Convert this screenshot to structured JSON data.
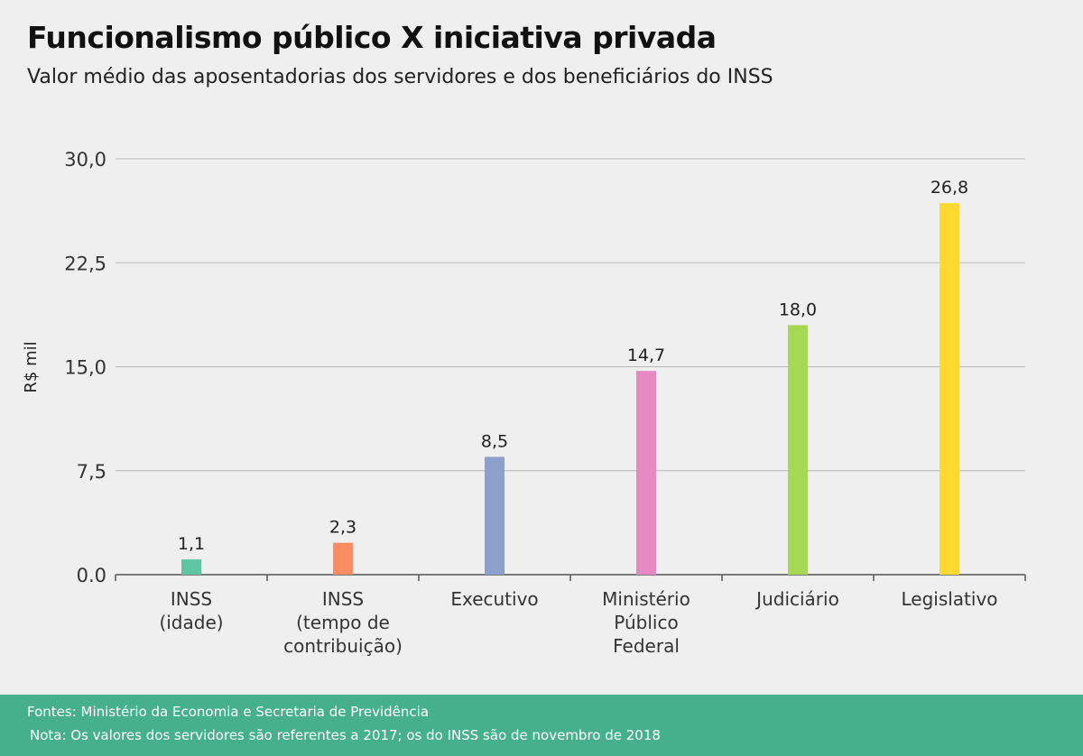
{
  "title": "Funcionalismo público X iniciativa privada",
  "subtitle": "Valor médio das aposentadorias dos servidores e dos beneficiários do INSS",
  "footer": {
    "sources": "Fontes: Ministério da Economia e Secretaria de Previdência",
    "note": "Nota: Os valores dos servidores são referentes a 2017; os do INSS são de novembro de 2018"
  },
  "chart_data": {
    "type": "bar",
    "ylabel": "R$ mil",
    "ylim": [
      0,
      30
    ],
    "yticks": [
      0,
      7.5,
      15,
      22.5,
      30
    ],
    "ytick_labels": [
      "0.0",
      "7,5",
      "15,0",
      "22,5",
      "30,0"
    ],
    "grid": true,
    "categories": [
      [
        "INSS",
        "(idade)"
      ],
      [
        "INSS",
        "(tempo de",
        "contribuição)"
      ],
      [
        "Executivo"
      ],
      [
        "Ministério",
        "Público",
        "Federal"
      ],
      [
        "Judiciário"
      ],
      [
        "Legislativo"
      ]
    ],
    "values": [
      1.1,
      2.3,
      8.5,
      14.7,
      18.0,
      26.8
    ],
    "value_labels": [
      "1,1",
      "2,3",
      "8,5",
      "14,7",
      "18,0",
      "26,8"
    ],
    "colors": [
      "#5fc4a2",
      "#fc8d62",
      "#8da0cb",
      "#e78ac3",
      "#a6d854",
      "#ffd92f"
    ]
  }
}
